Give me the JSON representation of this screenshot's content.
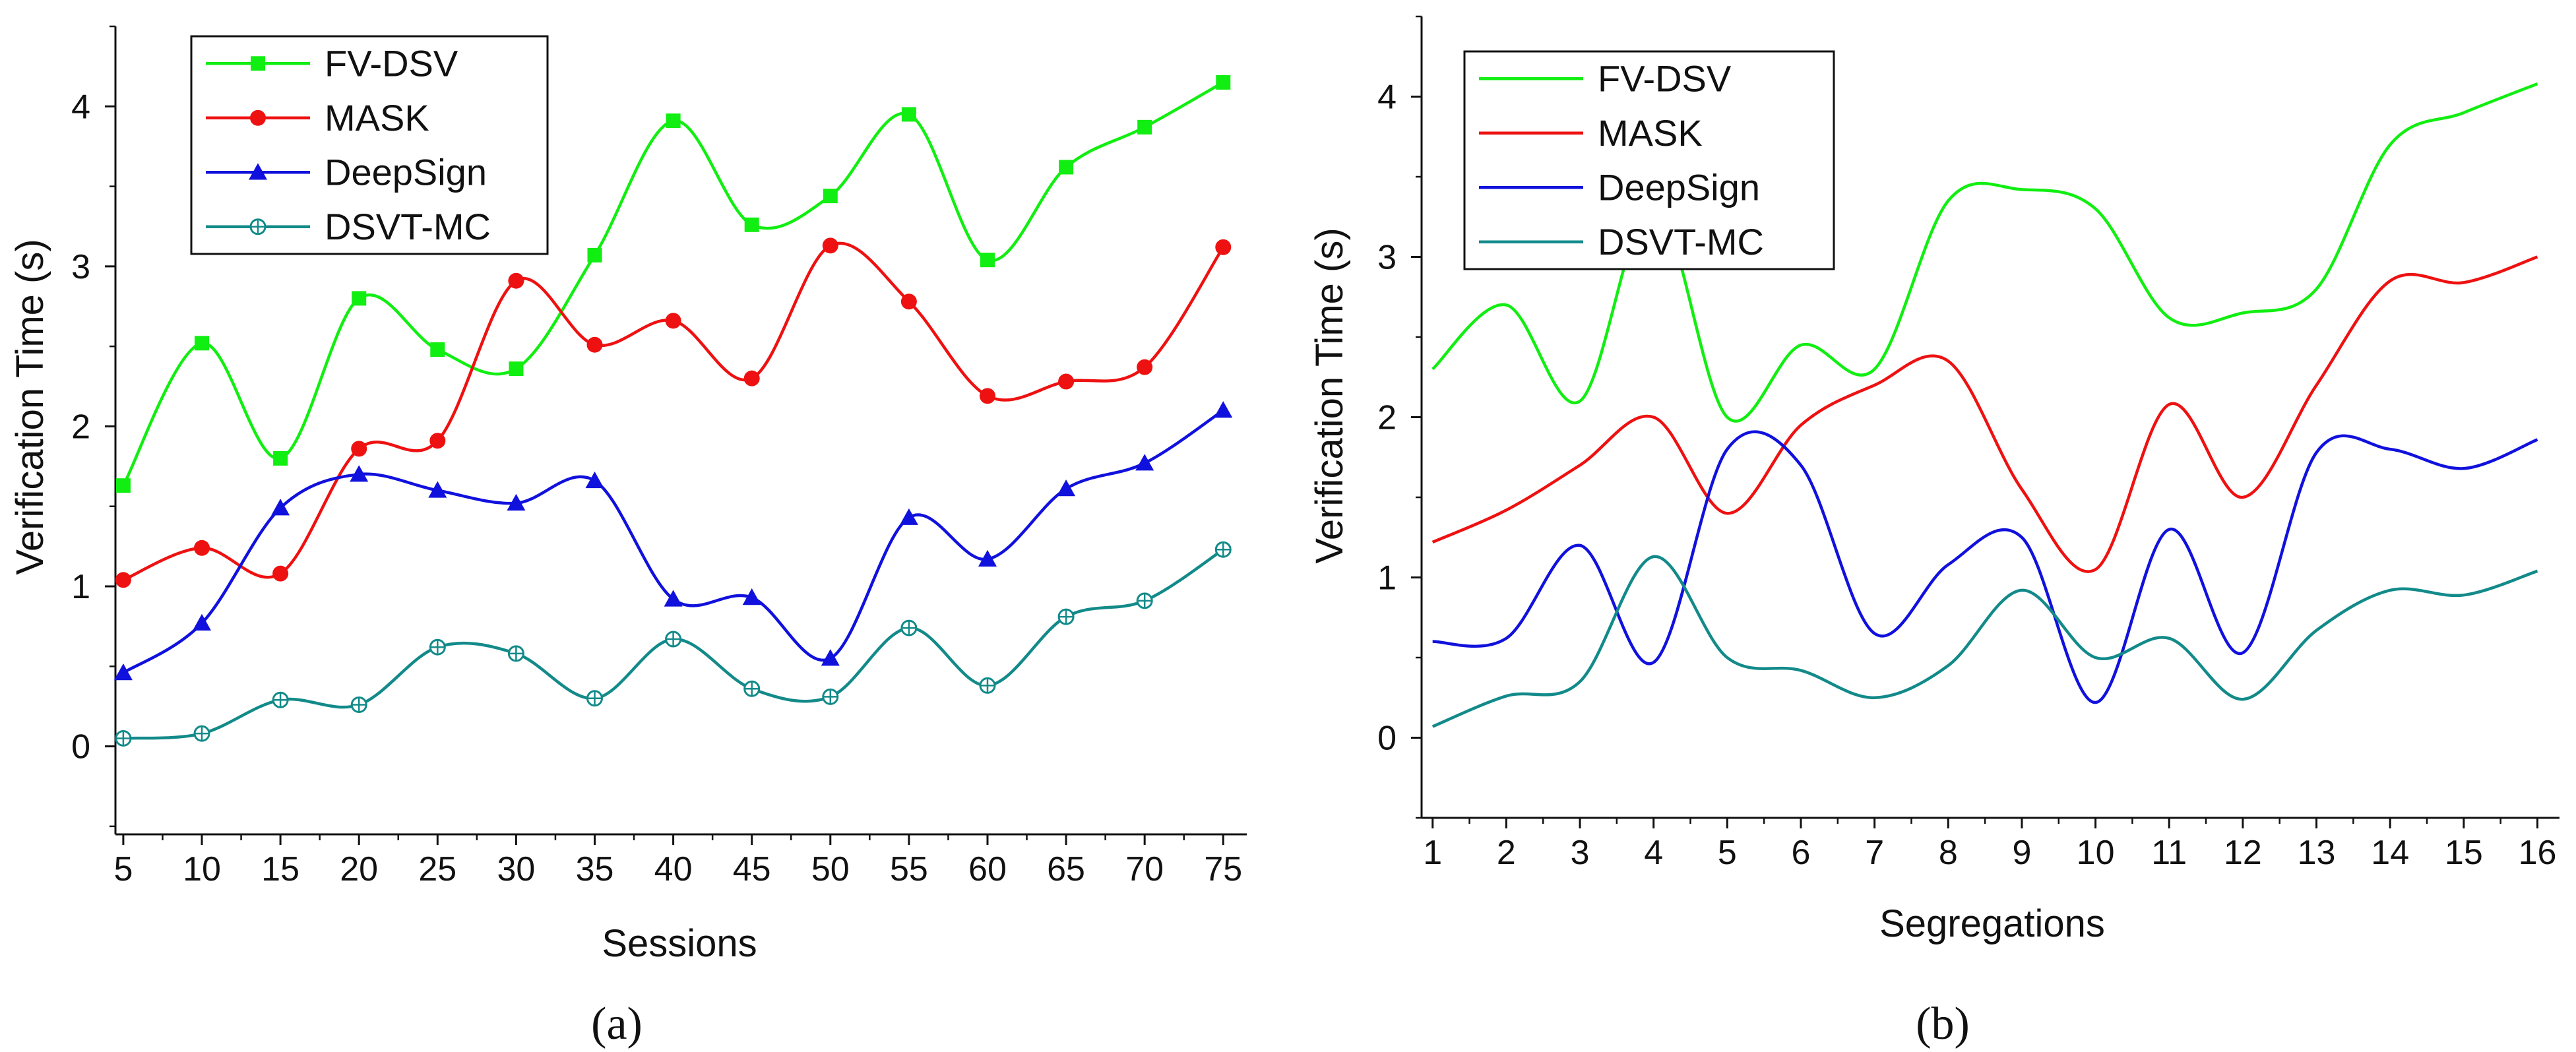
{
  "chart_data": [
    {
      "panel_label": "(a)",
      "type": "line",
      "smoothed": true,
      "markers": true,
      "xlabel": "Sessions",
      "ylabel": "Verification Time (s)",
      "xlim": [
        4.5,
        76.5
      ],
      "ylim": [
        -0.55,
        4.5
      ],
      "x_ticks": [
        5,
        10,
        15,
        20,
        25,
        30,
        35,
        40,
        45,
        50,
        55,
        60,
        65,
        70,
        75
      ],
      "y_ticks": [
        0,
        1,
        2,
        3,
        4
      ],
      "legend_position": "top-left",
      "x": [
        5,
        10,
        15,
        20,
        25,
        30,
        35,
        40,
        45,
        50,
        55,
        60,
        65,
        70,
        75
      ],
      "series": [
        {
          "name": "FV-DSV",
          "color": "#11ee11",
          "marker": "square",
          "values": [
            1.63,
            2.52,
            1.8,
            2.8,
            2.48,
            2.36,
            3.07,
            3.91,
            3.26,
            3.44,
            3.95,
            3.04,
            3.62,
            3.87,
            4.15
          ]
        },
        {
          "name": "MASK",
          "color": "#ee1111",
          "marker": "circle",
          "values": [
            1.04,
            1.24,
            1.08,
            1.86,
            1.91,
            2.91,
            2.51,
            2.66,
            2.3,
            3.13,
            2.78,
            2.19,
            2.28,
            2.37,
            3.12
          ]
        },
        {
          "name": "DeepSign",
          "color": "#1111dd",
          "marker": "triangle",
          "values": [
            0.46,
            0.77,
            1.49,
            1.7,
            1.6,
            1.52,
            1.66,
            0.92,
            0.93,
            0.55,
            1.43,
            1.17,
            1.61,
            1.77,
            2.1
          ]
        },
        {
          "name": "DSVT-MC",
          "color": "#138a8a",
          "marker": "circle-cross",
          "values": [
            0.05,
            0.08,
            0.29,
            0.26,
            0.62,
            0.58,
            0.3,
            0.67,
            0.36,
            0.31,
            0.74,
            0.38,
            0.81,
            0.91,
            1.23
          ]
        }
      ]
    },
    {
      "panel_label": "(b)",
      "type": "line",
      "smoothed": true,
      "markers": false,
      "xlabel": "Segregations",
      "ylabel": "Verification Time (s)",
      "xlim": [
        0.85,
        16.3
      ],
      "ylim": [
        -0.5,
        4.5
      ],
      "x_ticks": [
        1,
        2,
        3,
        4,
        5,
        6,
        7,
        8,
        9,
        10,
        11,
        12,
        13,
        14,
        15,
        16
      ],
      "y_ticks": [
        0,
        1,
        2,
        3,
        4
      ],
      "legend_position": "top-left",
      "x": [
        1,
        2,
        3,
        4,
        5,
        6,
        7,
        8,
        9,
        10,
        11,
        12,
        13,
        14,
        15,
        16
      ],
      "series": [
        {
          "name": "FV-DSV",
          "color": "#11ee11",
          "values": [
            2.3,
            2.7,
            2.1,
            3.33,
            2.0,
            2.45,
            2.3,
            3.35,
            3.42,
            3.3,
            2.62,
            2.65,
            2.8,
            3.7,
            3.9,
            4.08
          ]
        },
        {
          "name": "MASK",
          "color": "#ee1111",
          "values": [
            1.22,
            1.42,
            1.7,
            2.0,
            1.4,
            1.95,
            2.2,
            2.35,
            1.55,
            1.05,
            2.08,
            1.5,
            2.2,
            2.85,
            2.84,
            3.0
          ]
        },
        {
          "name": "DeepSign",
          "color": "#1111dd",
          "values": [
            0.6,
            0.62,
            1.2,
            0.47,
            1.8,
            1.7,
            0.65,
            1.08,
            1.25,
            0.22,
            1.3,
            0.53,
            1.78,
            1.8,
            1.68,
            1.86
          ]
        },
        {
          "name": "DSVT-MC",
          "color": "#138a8a",
          "values": [
            0.07,
            0.26,
            0.35,
            1.13,
            0.5,
            0.42,
            0.25,
            0.45,
            0.92,
            0.5,
            0.62,
            0.24,
            0.67,
            0.92,
            0.89,
            1.04
          ]
        }
      ]
    }
  ]
}
